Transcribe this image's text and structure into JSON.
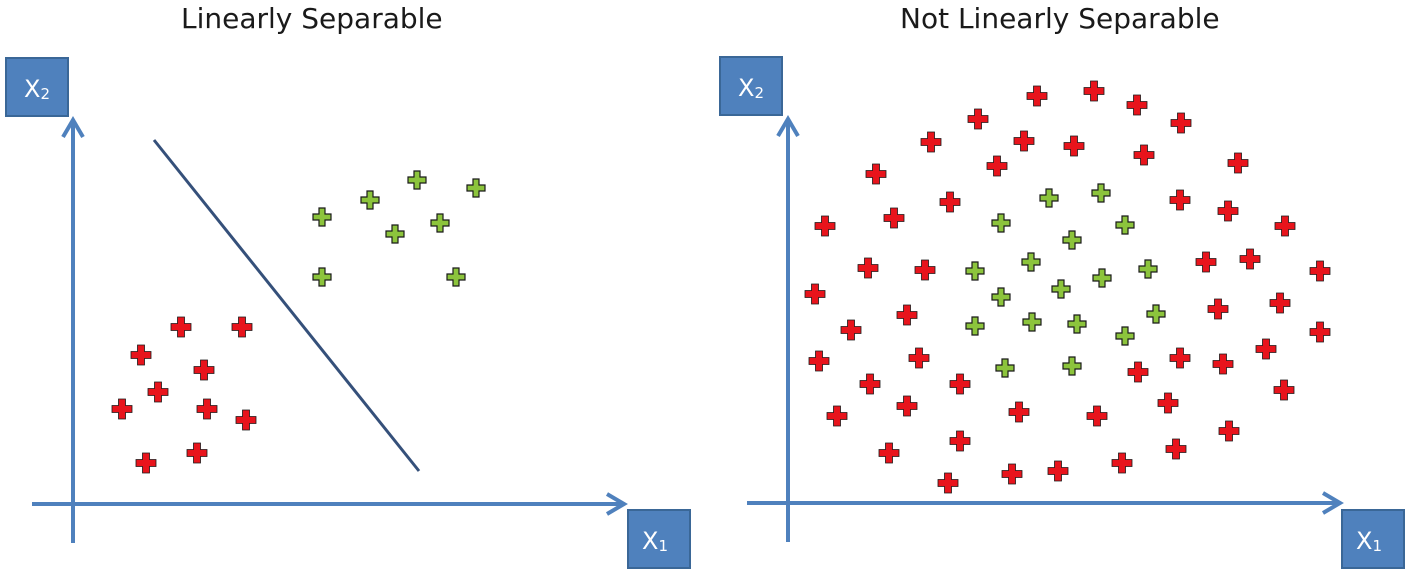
{
  "panels": [
    {
      "title": "Linearly Separable",
      "x_axis_label": "X",
      "x_axis_sub": "1",
      "y_axis_label": "X",
      "y_axis_sub": "2"
    },
    {
      "title": "Not Linearly Separable",
      "x_axis_label": "X",
      "x_axis_sub": "1",
      "y_axis_label": "X",
      "y_axis_sub": "2"
    }
  ],
  "colors": {
    "axis": "#4f81bd",
    "label_box": "#4f81bd",
    "label_box_border": "#3a6797",
    "class_red": "#e8141c",
    "class_green": "#8cc43c",
    "separator": "#35507a",
    "marker_outline": "#1a1a1a"
  },
  "icons": {
    "point_marker": "plus-icon"
  }
}
